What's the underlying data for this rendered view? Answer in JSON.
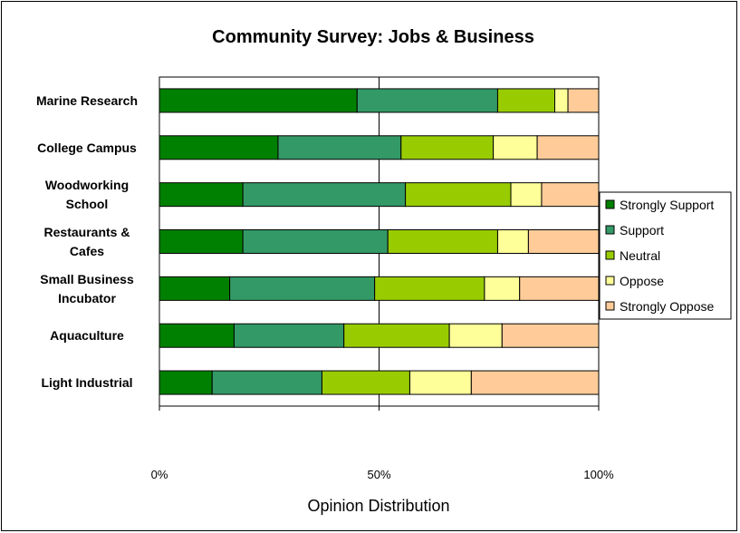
{
  "chart_data": {
    "type": "bar",
    "orientation": "horizontal",
    "stacked": "percent",
    "title": "Community Survey: Jobs & Business",
    "xlabel": "Opinion Distribution",
    "ylabel": "",
    "xlim": [
      0,
      100
    ],
    "x_ticks": [
      "0%",
      "50%",
      "100%"
    ],
    "gridlines": "vertical-major",
    "legend_position": "right",
    "categories": [
      [
        "Marine Research"
      ],
      [
        "College Campus"
      ],
      [
        "Woodworking",
        "School"
      ],
      [
        "Restaurants &",
        "Cafes"
      ],
      [
        "Small Business",
        "Incubator"
      ],
      [
        "Aquaculture"
      ],
      [
        "Light Industrial"
      ]
    ],
    "series": [
      {
        "name": "Strongly Support",
        "color": "#008000",
        "values": [
          45,
          27,
          19,
          19,
          16,
          17,
          12
        ]
      },
      {
        "name": "Support",
        "color": "#339966",
        "values": [
          32,
          28,
          37,
          33,
          33,
          25,
          25
        ]
      },
      {
        "name": "Neutral",
        "color": "#99CC00",
        "values": [
          13,
          21,
          24,
          25,
          25,
          24,
          20
        ]
      },
      {
        "name": "Oppose",
        "color": "#FFFF99",
        "values": [
          3,
          10,
          7,
          7,
          8,
          12,
          14
        ]
      },
      {
        "name": "Strongly Oppose",
        "color": "#FFCC99",
        "values": [
          7,
          14,
          13,
          16,
          18,
          22,
          29
        ]
      }
    ]
  }
}
